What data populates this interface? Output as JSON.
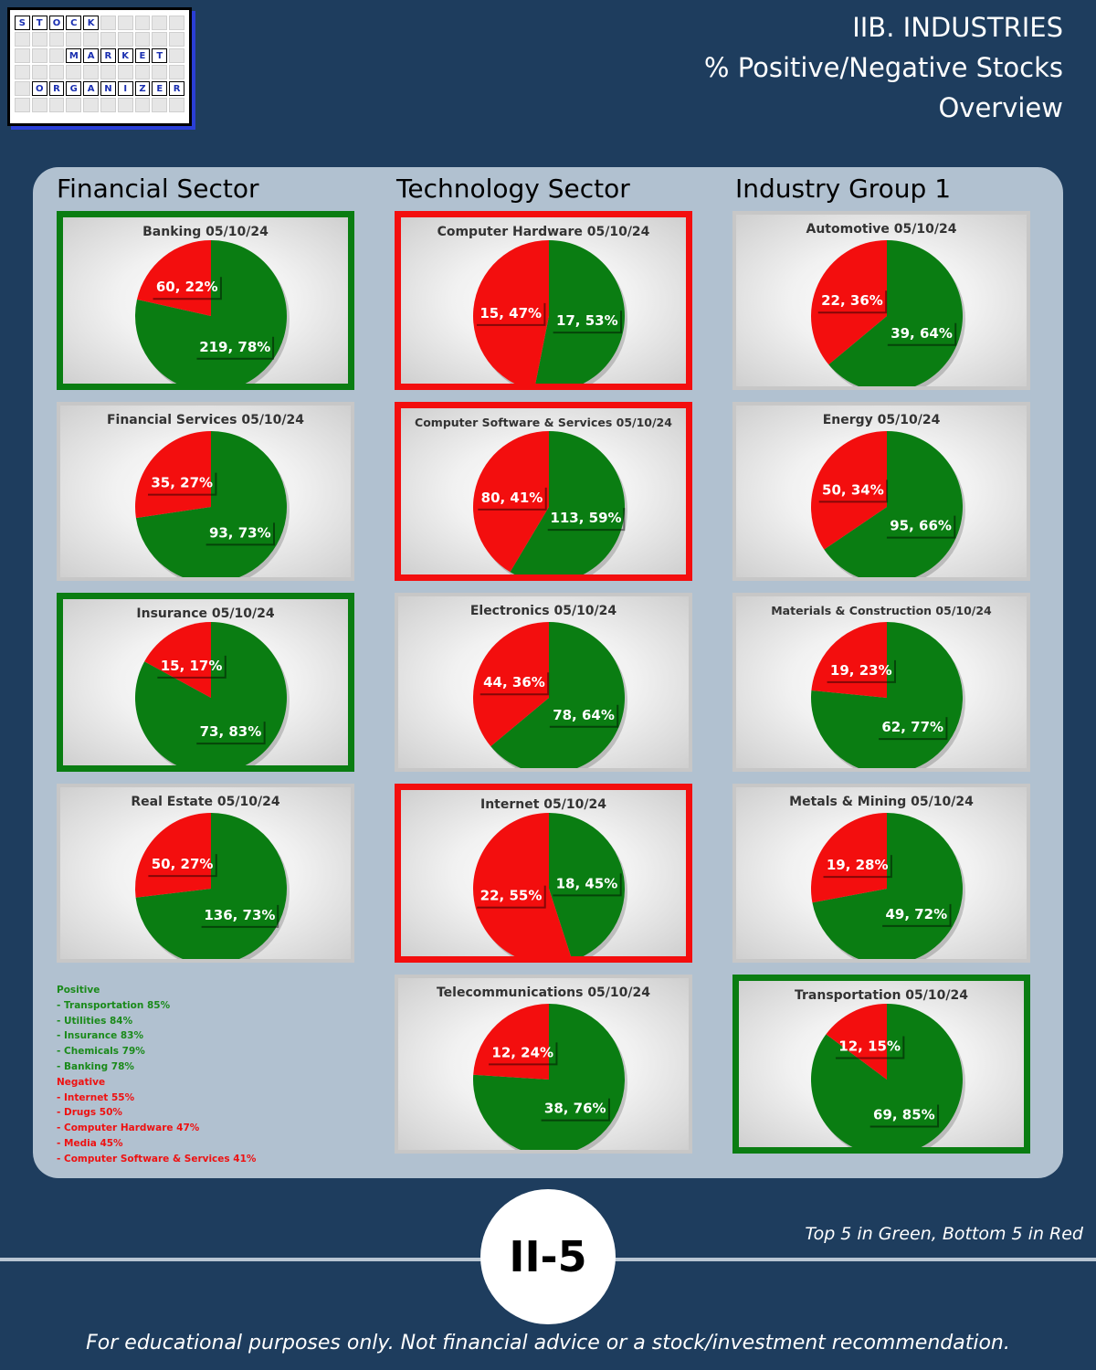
{
  "header": {
    "line1": "IIB. INDUSTRIES",
    "line2": "% Positive/Negative Stocks",
    "line3": "Overview"
  },
  "logo": {
    "word1": "STOCK",
    "word2": "MARKET",
    "word3": "ORGANIZER"
  },
  "columns": [
    "Financial Sector",
    "Technology Sector",
    "Industry Group 1"
  ],
  "colors": {
    "positive": "#0a7d12",
    "negative": "#f30e0e",
    "background": "#1e3d5e",
    "panel": "#b1c1d0"
  },
  "chart_data": [
    {
      "type": "pie",
      "title": "Banking 05/10/24",
      "labels": [
        "Negative",
        "Positive"
      ],
      "values": [
        60,
        219
      ],
      "percents": [
        22,
        78
      ],
      "highlight": "top"
    },
    {
      "type": "pie",
      "title": "Financial Services 05/10/24",
      "labels": [
        "Negative",
        "Positive"
      ],
      "values": [
        35,
        93
      ],
      "percents": [
        27,
        73
      ],
      "highlight": "none"
    },
    {
      "type": "pie",
      "title": "Insurance 05/10/24",
      "labels": [
        "Negative",
        "Positive"
      ],
      "values": [
        15,
        73
      ],
      "percents": [
        17,
        83
      ],
      "highlight": "top"
    },
    {
      "type": "pie",
      "title": "Real Estate 05/10/24",
      "labels": [
        "Negative",
        "Positive"
      ],
      "values": [
        50,
        136
      ],
      "percents": [
        27,
        73
      ],
      "highlight": "none"
    },
    {
      "type": "pie",
      "title": "Computer Hardware 05/10/24",
      "labels": [
        "Negative",
        "Positive"
      ],
      "values": [
        15,
        17
      ],
      "percents": [
        47,
        53
      ],
      "highlight": "bottom"
    },
    {
      "type": "pie",
      "title": "Computer Software & Services 05/10/24",
      "labels": [
        "Negative",
        "Positive"
      ],
      "values": [
        80,
        113
      ],
      "percents": [
        41,
        59
      ],
      "highlight": "bottom"
    },
    {
      "type": "pie",
      "title": "Electronics 05/10/24",
      "labels": [
        "Negative",
        "Positive"
      ],
      "values": [
        44,
        78
      ],
      "percents": [
        36,
        64
      ],
      "highlight": "none"
    },
    {
      "type": "pie",
      "title": "Internet 05/10/24",
      "labels": [
        "Negative",
        "Positive"
      ],
      "values": [
        22,
        18
      ],
      "percents": [
        55,
        45
      ],
      "highlight": "bottom"
    },
    {
      "type": "pie",
      "title": "Telecommunications 05/10/24",
      "labels": [
        "Negative",
        "Positive"
      ],
      "values": [
        12,
        38
      ],
      "percents": [
        24,
        76
      ],
      "highlight": "none"
    },
    {
      "type": "pie",
      "title": "Automotive 05/10/24",
      "labels": [
        "Negative",
        "Positive"
      ],
      "values": [
        22,
        39
      ],
      "percents": [
        36,
        64
      ],
      "highlight": "none"
    },
    {
      "type": "pie",
      "title": "Energy 05/10/24",
      "labels": [
        "Negative",
        "Positive"
      ],
      "values": [
        50,
        95
      ],
      "percents": [
        34,
        66
      ],
      "highlight": "none"
    },
    {
      "type": "pie",
      "title": "Materials & Construction 05/10/24",
      "labels": [
        "Negative",
        "Positive"
      ],
      "values": [
        19,
        62
      ],
      "percents": [
        23,
        77
      ],
      "highlight": "none"
    },
    {
      "type": "pie",
      "title": "Metals & Mining 05/10/24",
      "labels": [
        "Negative",
        "Positive"
      ],
      "values": [
        19,
        49
      ],
      "percents": [
        28,
        72
      ],
      "highlight": "none"
    },
    {
      "type": "pie",
      "title": "Transportation 05/10/24",
      "labels": [
        "Negative",
        "Positive"
      ],
      "values": [
        12,
        69
      ],
      "percents": [
        15,
        85
      ],
      "highlight": "top"
    }
  ],
  "legend": {
    "positive_title": "Positive",
    "positive_items": [
      " - Transportation 85%",
      " - Utilities 84%",
      " - Insurance 83%",
      " - Chemicals 79%",
      " - Banking 78%"
    ],
    "negative_title": "Negative",
    "negative_items": [
      " - Internet 55%",
      " - Drugs 50%",
      " - Computer Hardware 47%",
      " - Media 45%",
      " - Computer Software & Services 41%"
    ]
  },
  "footer": {
    "note": "Top 5 in Green, Bottom 5 in Red",
    "badge": "II-5",
    "disclaimer": "For educational purposes only. Not financial advice or a stock/investment recommendation."
  }
}
